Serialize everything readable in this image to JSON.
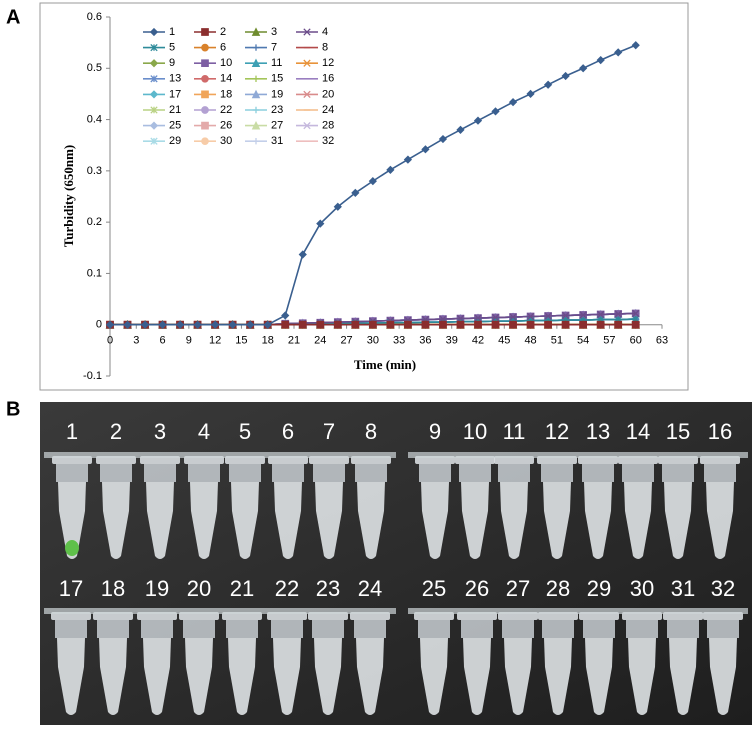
{
  "chart_data": {
    "type": "line",
    "panel_label": "A",
    "x_label": "Time (min)",
    "y_label": "Turbidity (650nm)",
    "x": [
      0,
      2,
      4,
      6,
      8,
      10,
      12,
      14,
      16,
      18,
      20,
      22,
      24,
      26,
      28,
      30,
      32,
      34,
      36,
      38,
      40,
      42,
      44,
      46,
      48,
      50,
      52,
      54,
      56,
      58,
      60
    ],
    "xlim": [
      0,
      63
    ],
    "xticks": [
      0,
      3,
      6,
      9,
      12,
      15,
      18,
      21,
      24,
      27,
      30,
      33,
      36,
      39,
      42,
      45,
      48,
      51,
      54,
      57,
      60,
      63
    ],
    "ylim": [
      -0.1,
      0.6
    ],
    "yticks": [
      -0.1,
      0,
      0.1,
      0.2,
      0.3,
      0.4,
      0.5,
      0.6
    ],
    "series": [
      {
        "name": "1",
        "color": "#3a5f8f",
        "values": [
          0,
          0,
          0,
          0,
          0,
          0,
          0,
          0,
          0,
          0,
          0.018,
          0.137,
          0.197,
          0.23,
          0.257,
          0.28,
          0.302,
          0.322,
          0.342,
          0.362,
          0.38,
          0.398,
          0.416,
          0.434,
          0.45,
          0.468,
          0.485,
          0.5,
          0.516,
          0.531,
          0.545
        ]
      },
      {
        "name": "2",
        "color": "#8b2e2e",
        "values": [
          0,
          0,
          0,
          0,
          0,
          0,
          0,
          0,
          0,
          0,
          0,
          0,
          0,
          0,
          0,
          0,
          0,
          0,
          0,
          0,
          0,
          0,
          0,
          0,
          0,
          0,
          0,
          0,
          0,
          0,
          0
        ]
      },
      {
        "name": "3",
        "color": "#6f8c2e",
        "values": [
          0,
          0,
          0,
          0,
          0,
          0,
          0,
          0,
          0,
          0,
          0,
          0,
          0,
          0,
          0,
          0,
          0,
          0,
          0,
          0,
          0,
          0,
          0,
          0,
          0,
          0,
          0,
          0,
          0,
          0,
          0
        ]
      },
      {
        "name": "4",
        "color": "#6b4c8a",
        "values": [
          0,
          0,
          0,
          0,
          0,
          0,
          0,
          0,
          0,
          0,
          0.002,
          0.003,
          0.004,
          0.005,
          0.006,
          0.007,
          0.008,
          0.009,
          0.01,
          0.011,
          0.012,
          0.013,
          0.014,
          0.015,
          0.016,
          0.017,
          0.018,
          0.019,
          0.02,
          0.021,
          0.022
        ]
      },
      {
        "name": "5",
        "color": "#2e8b9a",
        "values": [
          0,
          0,
          0,
          0,
          0,
          0,
          0,
          0,
          0,
          0,
          0.001,
          0.001,
          0.002,
          0.002,
          0.003,
          0.003,
          0.004,
          0.004,
          0.005,
          0.005,
          0.006,
          0.006,
          0.007,
          0.007,
          0.008,
          0.008,
          0.009,
          0.009,
          0.01,
          0.01,
          0.011
        ]
      },
      {
        "name": "6",
        "color": "#d9822b",
        "values": [
          0,
          0,
          0,
          0,
          0,
          0,
          0,
          0,
          0,
          0,
          0,
          0,
          0,
          0,
          0,
          0,
          0,
          0,
          0,
          0,
          0,
          0,
          0,
          0,
          0,
          0,
          0,
          0,
          0,
          0,
          0
        ]
      },
      {
        "name": "7",
        "color": "#4f79b0",
        "values": [
          0,
          0,
          0,
          0,
          0,
          0,
          0,
          0,
          0,
          0,
          0.001,
          0.001,
          0.002,
          0.002,
          0.003,
          0.003,
          0.004,
          0.004,
          0.005,
          0.005,
          0.006,
          0.006,
          0.007,
          0.007,
          0.008,
          0.008,
          0.009,
          0.009,
          0.01,
          0.01,
          0.011
        ]
      },
      {
        "name": "8",
        "color": "#b34a4a",
        "values": [
          0,
          0,
          0,
          0,
          0,
          0,
          0,
          0,
          0,
          0,
          0,
          0,
          0,
          0,
          0,
          0,
          0,
          0,
          0,
          0,
          0,
          0,
          0,
          0,
          0,
          0,
          0,
          0,
          0,
          0,
          0
        ]
      },
      {
        "name": "9",
        "color": "#8aa84a",
        "values": [
          0,
          0,
          0,
          0,
          0,
          0,
          0,
          0,
          0,
          0,
          0,
          0,
          0,
          0,
          0,
          0,
          0,
          0,
          0,
          0,
          0,
          0,
          0,
          0,
          0,
          0,
          0,
          0,
          0,
          0,
          0
        ]
      },
      {
        "name": "10",
        "color": "#7d5fa3",
        "values": [
          0,
          0,
          0,
          0,
          0,
          0,
          0,
          0,
          0,
          0,
          0.002,
          0.003,
          0.004,
          0.005,
          0.006,
          0.007,
          0.008,
          0.009,
          0.01,
          0.011,
          0.012,
          0.013,
          0.014,
          0.015,
          0.016,
          0.017,
          0.018,
          0.019,
          0.02,
          0.021,
          0.022
        ]
      },
      {
        "name": "11",
        "color": "#3ea0b4",
        "values": [
          0,
          0,
          0,
          0,
          0,
          0,
          0,
          0,
          0,
          0,
          0.001,
          0.001,
          0.002,
          0.002,
          0.003,
          0.003,
          0.004,
          0.004,
          0.005,
          0.005,
          0.006,
          0.006,
          0.007,
          0.007,
          0.008,
          0.008,
          0.009,
          0.009,
          0.01,
          0.01,
          0.011
        ]
      },
      {
        "name": "12",
        "color": "#e8933a",
        "values": [
          0,
          0,
          0,
          0,
          0,
          0,
          0,
          0,
          0,
          0,
          0,
          0,
          0,
          0,
          0,
          0,
          0,
          0,
          0,
          0,
          0,
          0,
          0,
          0,
          0,
          0,
          0,
          0,
          0,
          0,
          0
        ]
      },
      {
        "name": "13",
        "color": "#6a8ecb",
        "values": [
          0,
          0,
          0,
          0,
          0,
          0,
          0,
          0,
          0,
          0,
          0.002,
          0.003,
          0.004,
          0.005,
          0.006,
          0.007,
          0.008,
          0.009,
          0.01,
          0.011,
          0.012,
          0.013,
          0.014,
          0.015,
          0.016,
          0.017,
          0.018,
          0.019,
          0.02,
          0.021,
          0.022
        ]
      },
      {
        "name": "14",
        "color": "#d06a6a",
        "values": [
          0,
          0,
          0,
          0,
          0,
          0,
          0,
          0,
          0,
          0,
          0,
          0,
          0,
          0,
          0,
          0,
          0,
          0,
          0,
          0,
          0,
          0,
          0,
          0,
          0,
          0,
          0,
          0,
          0,
          0,
          0
        ]
      },
      {
        "name": "15",
        "color": "#a4c55a",
        "values": [
          0,
          0,
          0,
          0,
          0,
          0,
          0,
          0,
          0,
          0,
          0,
          0,
          0,
          0,
          0,
          0,
          0,
          0,
          0,
          0,
          0,
          0,
          0,
          0,
          0,
          0,
          0,
          0,
          0,
          0,
          0
        ]
      },
      {
        "name": "16",
        "color": "#9a7fc0",
        "values": [
          0,
          0,
          0,
          0,
          0,
          0,
          0,
          0,
          0,
          0,
          0.002,
          0.003,
          0.004,
          0.005,
          0.006,
          0.007,
          0.008,
          0.009,
          0.01,
          0.011,
          0.012,
          0.013,
          0.014,
          0.015,
          0.016,
          0.017,
          0.018,
          0.019,
          0.02,
          0.021,
          0.022
        ]
      },
      {
        "name": "17",
        "color": "#5db8cc",
        "values": [
          0,
          0,
          0,
          0,
          0,
          0,
          0,
          0,
          0,
          0,
          0.001,
          0.001,
          0.002,
          0.002,
          0.003,
          0.003,
          0.004,
          0.004,
          0.005,
          0.005,
          0.006,
          0.006,
          0.007,
          0.007,
          0.008,
          0.008,
          0.009,
          0.009,
          0.01,
          0.01,
          0.011
        ]
      },
      {
        "name": "18",
        "color": "#f0a55a",
        "values": [
          0,
          0,
          0,
          0,
          0,
          0,
          0,
          0,
          0,
          0,
          0,
          0,
          0,
          0,
          0,
          0,
          0,
          0,
          0,
          0,
          0,
          0,
          0,
          0,
          0,
          0,
          0,
          0,
          0,
          0,
          0
        ]
      },
      {
        "name": "19",
        "color": "#8fa9d6",
        "values": [
          0,
          0,
          0,
          0,
          0,
          0,
          0,
          0,
          0,
          0,
          0.002,
          0.003,
          0.004,
          0.005,
          0.006,
          0.007,
          0.008,
          0.009,
          0.01,
          0.011,
          0.012,
          0.013,
          0.014,
          0.015,
          0.016,
          0.017,
          0.018,
          0.019,
          0.02,
          0.021,
          0.022
        ]
      },
      {
        "name": "20",
        "color": "#d98b8b",
        "values": [
          0,
          0,
          0,
          0,
          0,
          0,
          0,
          0,
          0,
          0,
          0,
          0,
          0,
          0,
          0,
          0,
          0,
          0,
          0,
          0,
          0,
          0,
          0,
          0,
          0,
          0,
          0,
          0,
          0,
          0,
          0
        ]
      },
      {
        "name": "21",
        "color": "#b9d283",
        "values": [
          0,
          0,
          0,
          0,
          0,
          0,
          0,
          0,
          0,
          0,
          0,
          0,
          0,
          0,
          0,
          0,
          0,
          0,
          0,
          0,
          0,
          0,
          0,
          0,
          0,
          0,
          0,
          0,
          0,
          0,
          0
        ]
      },
      {
        "name": "22",
        "color": "#b3a1d2",
        "values": [
          0,
          0,
          0,
          0,
          0,
          0,
          0,
          0,
          0,
          0,
          0.002,
          0.003,
          0.004,
          0.005,
          0.006,
          0.007,
          0.008,
          0.009,
          0.01,
          0.011,
          0.012,
          0.013,
          0.014,
          0.015,
          0.016,
          0.017,
          0.018,
          0.019,
          0.02,
          0.021,
          0.022
        ]
      },
      {
        "name": "23",
        "color": "#8ccfdd",
        "values": [
          0,
          0,
          0,
          0,
          0,
          0,
          0,
          0,
          0,
          0,
          0.001,
          0.001,
          0.002,
          0.002,
          0.003,
          0.003,
          0.004,
          0.004,
          0.005,
          0.005,
          0.006,
          0.006,
          0.007,
          0.007,
          0.008,
          0.008,
          0.009,
          0.009,
          0.01,
          0.01,
          0.011
        ]
      },
      {
        "name": "24",
        "color": "#f3bb88",
        "values": [
          0,
          0,
          0,
          0,
          0,
          0,
          0,
          0,
          0,
          0,
          0,
          0,
          0,
          0,
          0,
          0,
          0,
          0,
          0,
          0,
          0,
          0,
          0,
          0,
          0,
          0,
          0,
          0,
          0,
          0,
          0
        ]
      },
      {
        "name": "25",
        "color": "#a9bde0",
        "values": [
          0,
          0,
          0,
          0,
          0,
          0,
          0,
          0,
          0,
          0,
          0.002,
          0.003,
          0.004,
          0.005,
          0.006,
          0.007,
          0.008,
          0.009,
          0.01,
          0.011,
          0.012,
          0.013,
          0.014,
          0.015,
          0.016,
          0.017,
          0.018,
          0.019,
          0.02,
          0.021,
          0.022
        ]
      },
      {
        "name": "26",
        "color": "#e3aaaa",
        "values": [
          0,
          0,
          0,
          0,
          0,
          0,
          0,
          0,
          0,
          0,
          0,
          0,
          0,
          0,
          0,
          0,
          0,
          0,
          0,
          0,
          0,
          0,
          0,
          0,
          0,
          0,
          0,
          0,
          0,
          0,
          0
        ]
      },
      {
        "name": "27",
        "color": "#c9dca5",
        "values": [
          0,
          0,
          0,
          0,
          0,
          0,
          0,
          0,
          0,
          0,
          0,
          0,
          0,
          0,
          0,
          0,
          0,
          0,
          0,
          0,
          0,
          0,
          0,
          0,
          0,
          0,
          0,
          0,
          0,
          0,
          0
        ]
      },
      {
        "name": "28",
        "color": "#c5b8dd",
        "values": [
          0,
          0,
          0,
          0,
          0,
          0,
          0,
          0,
          0,
          0,
          0.002,
          0.003,
          0.004,
          0.005,
          0.006,
          0.007,
          0.008,
          0.009,
          0.01,
          0.011,
          0.012,
          0.013,
          0.014,
          0.015,
          0.016,
          0.017,
          0.018,
          0.019,
          0.02,
          0.021,
          0.022
        ]
      },
      {
        "name": "29",
        "color": "#a9dbe6",
        "values": [
          0,
          0,
          0,
          0,
          0,
          0,
          0,
          0,
          0,
          0,
          0.001,
          0.001,
          0.002,
          0.002,
          0.003,
          0.003,
          0.004,
          0.004,
          0.005,
          0.005,
          0.006,
          0.006,
          0.007,
          0.007,
          0.008,
          0.008,
          0.009,
          0.009,
          0.01,
          0.01,
          0.011
        ]
      },
      {
        "name": "30",
        "color": "#f7cca8",
        "values": [
          0,
          0,
          0,
          0,
          0,
          0,
          0,
          0,
          0,
          0,
          0,
          0,
          0,
          0,
          0,
          0,
          0,
          0,
          0,
          0,
          0,
          0,
          0,
          0,
          0,
          0,
          0,
          0,
          0,
          0,
          0
        ]
      },
      {
        "name": "31",
        "color": "#c3cfe9",
        "values": [
          0,
          0,
          0,
          0,
          0,
          0,
          0,
          0,
          0,
          0,
          0.002,
          0.003,
          0.004,
          0.005,
          0.006,
          0.007,
          0.008,
          0.009,
          0.01,
          0.011,
          0.012,
          0.013,
          0.014,
          0.015,
          0.016,
          0.017,
          0.018,
          0.019,
          0.02,
          0.021,
          0.022
        ]
      },
      {
        "name": "32",
        "color": "#eebebe",
        "values": [
          0,
          0,
          0,
          0,
          0,
          0,
          0,
          0,
          0,
          0,
          0,
          0,
          0,
          0,
          0,
          0,
          0,
          0,
          0,
          0,
          0,
          0,
          0,
          0,
          0,
          0,
          0,
          0,
          0,
          0,
          0
        ]
      }
    ]
  },
  "photo": {
    "panel_label": "B",
    "tube_labels": [
      "1",
      "2",
      "3",
      "4",
      "5",
      "6",
      "7",
      "8",
      "9",
      "10",
      "11",
      "12",
      "13",
      "14",
      "15",
      "16",
      "17",
      "18",
      "19",
      "20",
      "21",
      "22",
      "23",
      "24",
      "25",
      "26",
      "27",
      "28",
      "29",
      "30",
      "31",
      "32"
    ]
  }
}
